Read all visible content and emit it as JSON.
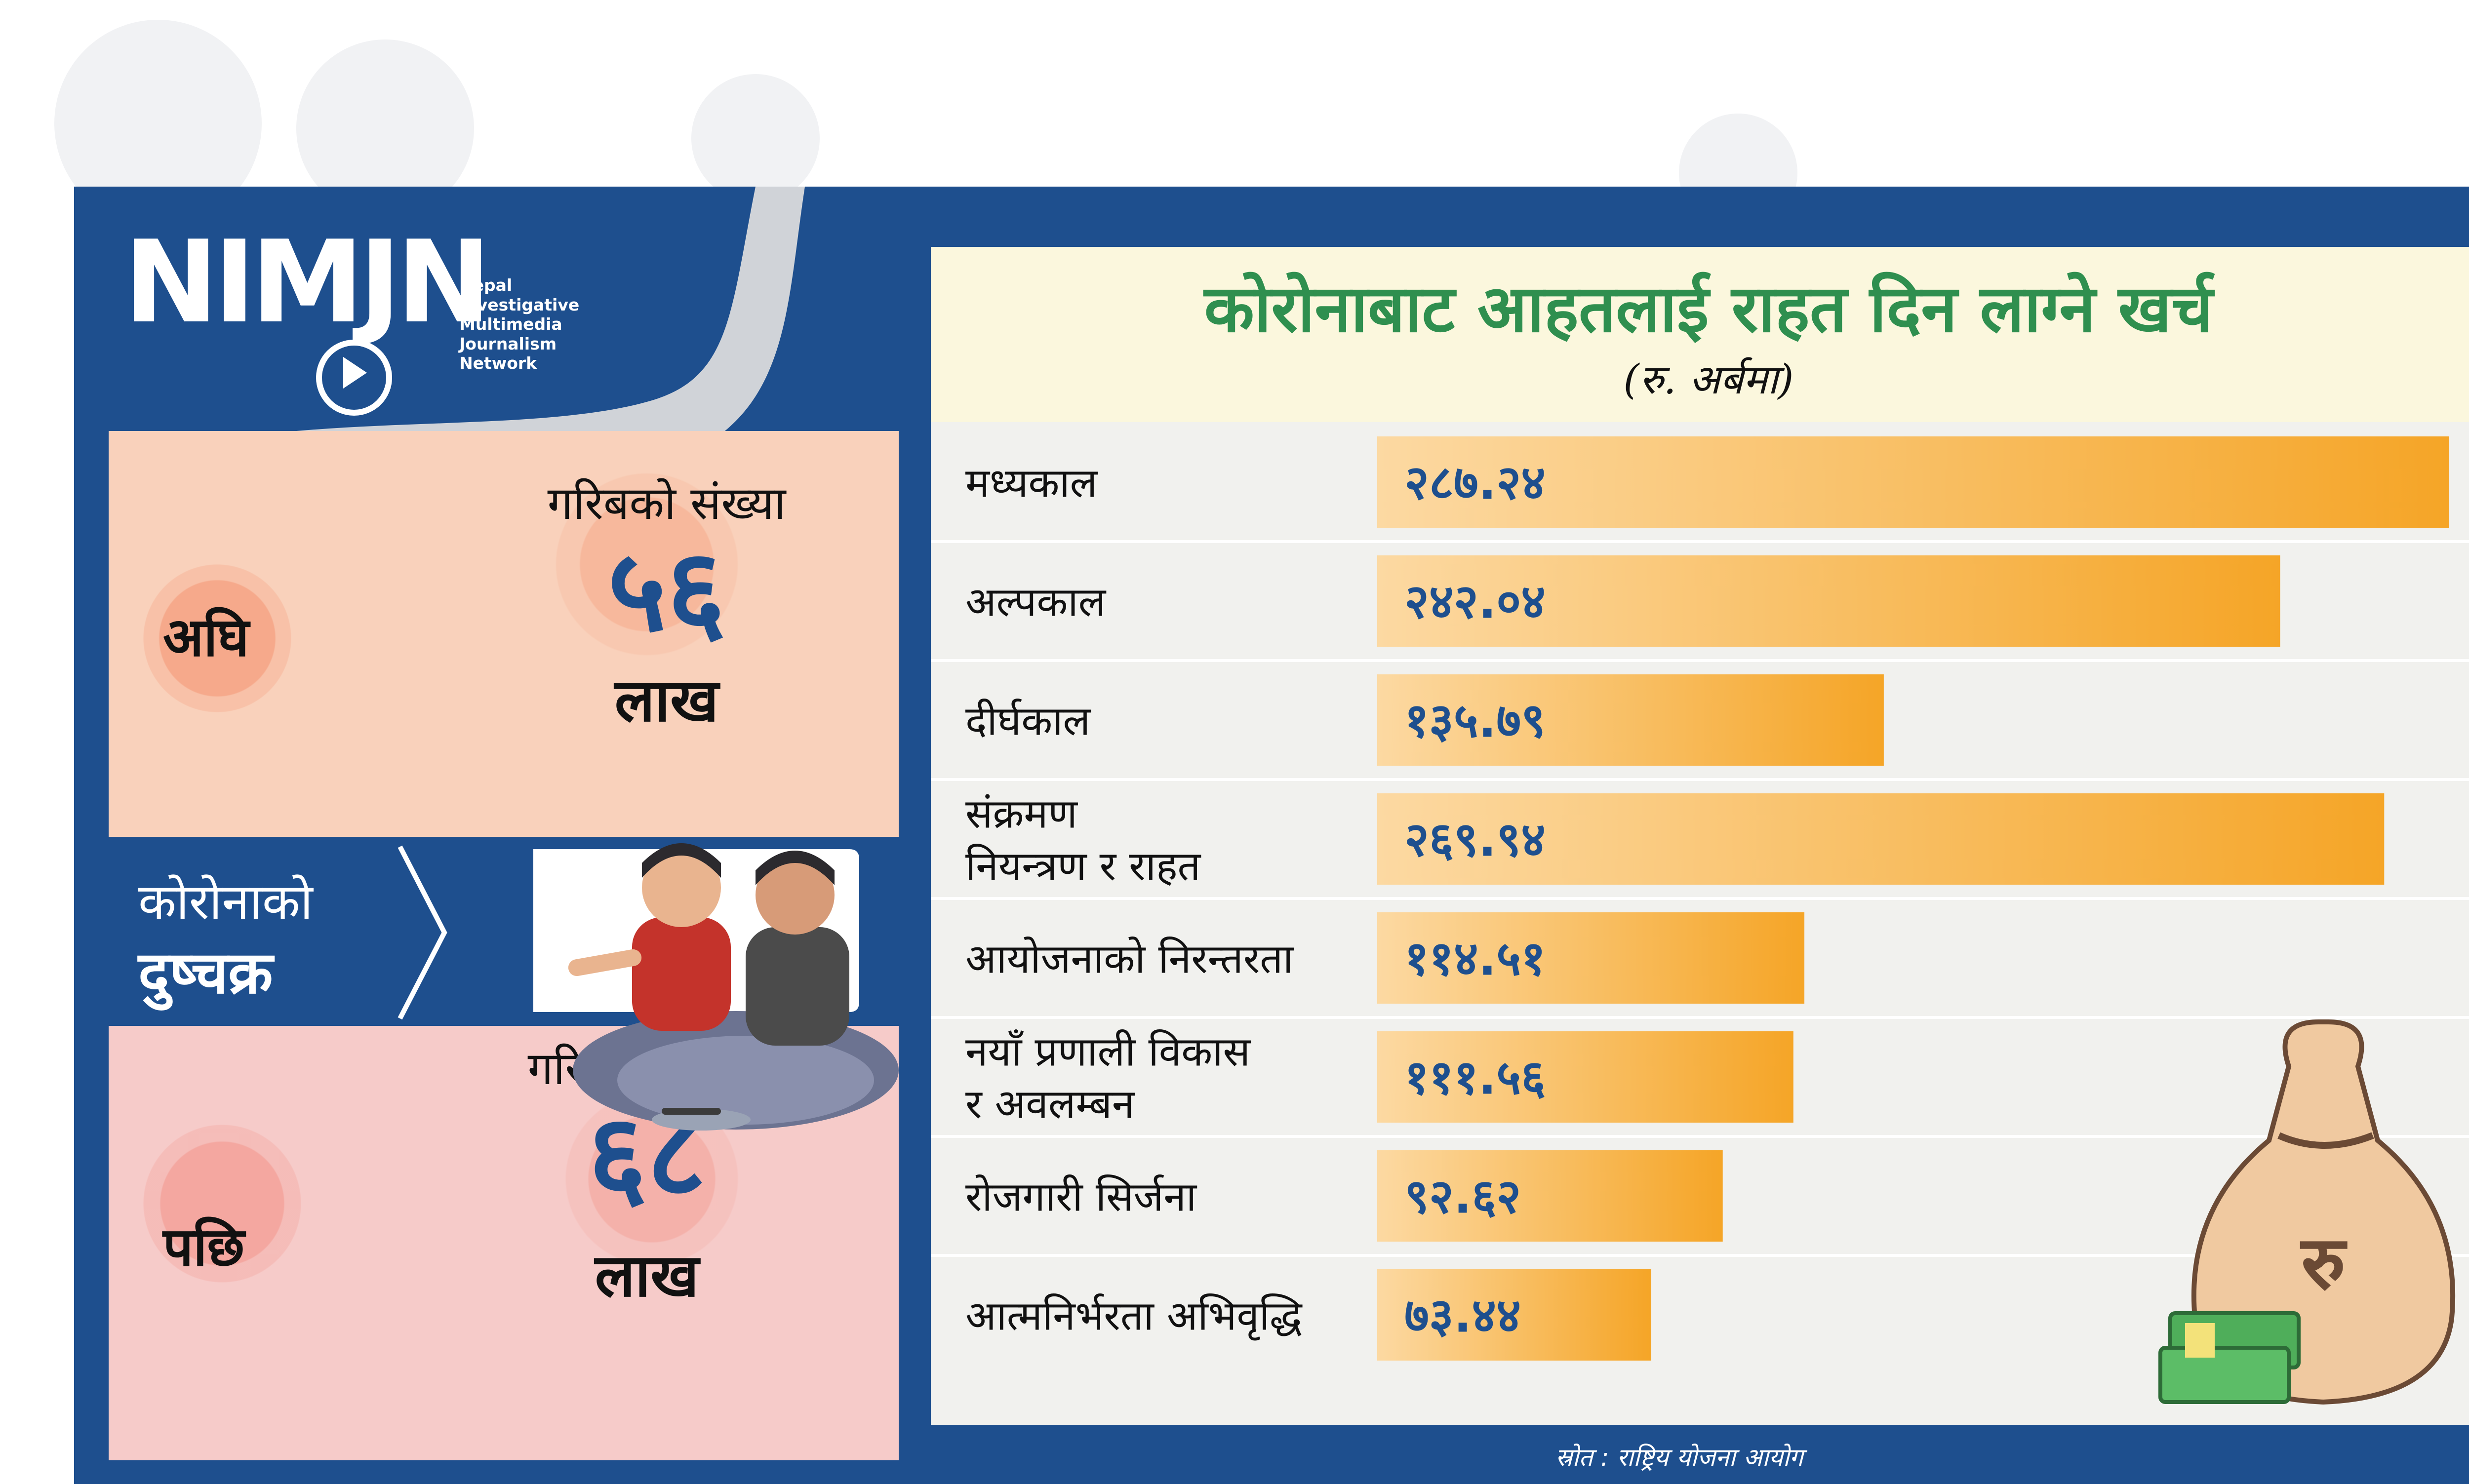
{
  "logo": {
    "word": "NIMJN",
    "lines": [
      "Nepal",
      "Investigative",
      "Multimedia",
      "Journalism",
      "Network"
    ]
  },
  "left_panel": {
    "before": {
      "label": "अघि",
      "heading": "गरिबको संख्या",
      "number": "५६",
      "unit": "लाख"
    },
    "cycle": {
      "line1": "कोरोनाको",
      "line2": "दुष्चक्र"
    },
    "after": {
      "label": "पछि",
      "heading": "गरिबको संख्या",
      "number": "६८",
      "unit": "लाख"
    }
  },
  "chart_data": {
    "type": "bar",
    "orientation": "horizontal",
    "title": "कोरोनाबाट आहतलाई राहत दिन लाग्ने खर्च",
    "subtitle": "(रु. अर्बमा)",
    "categories": [
      [
        "मध्यकाल"
      ],
      [
        "अल्पकाल"
      ],
      [
        "दीर्घकाल"
      ],
      [
        "संक्रमण",
        "नियन्त्रण र राहत"
      ],
      [
        "आयोजनाको निरन्तरता"
      ],
      [
        "नयाँ प्रणाली विकास",
        "र अवलम्बन"
      ],
      [
        "रोजगारी सिर्जना"
      ],
      [
        "आत्मनिर्भरता अभिवृद्धि"
      ]
    ],
    "values": [
      287.24,
      242.04,
      135.79,
      269.94,
      114.51,
      111.56,
      92.62,
      73.44
    ],
    "value_labels": [
      "२८७.२४",
      "२४२.०४",
      "१३५.७९",
      "२६९.९४",
      "११४.५१",
      "१११.५६",
      "९२.६२",
      "७३.४४"
    ],
    "xlim": [
      0,
      287.24
    ],
    "grid": false,
    "bar_color_start": "#fcd9a2",
    "bar_color_end": "#f5a527"
  },
  "money_bag": {
    "symbol": "रु"
  },
  "source": "स्रोत : राष्ट्रिय योजना आयोग",
  "colors": {
    "navy": "#1e4f8e",
    "title_green": "#2f8f4f",
    "before_panel": "#f9d1bb",
    "after_panel": "#f6cbc9",
    "card": "#f1f1ee",
    "header": "#fbf7dd"
  }
}
